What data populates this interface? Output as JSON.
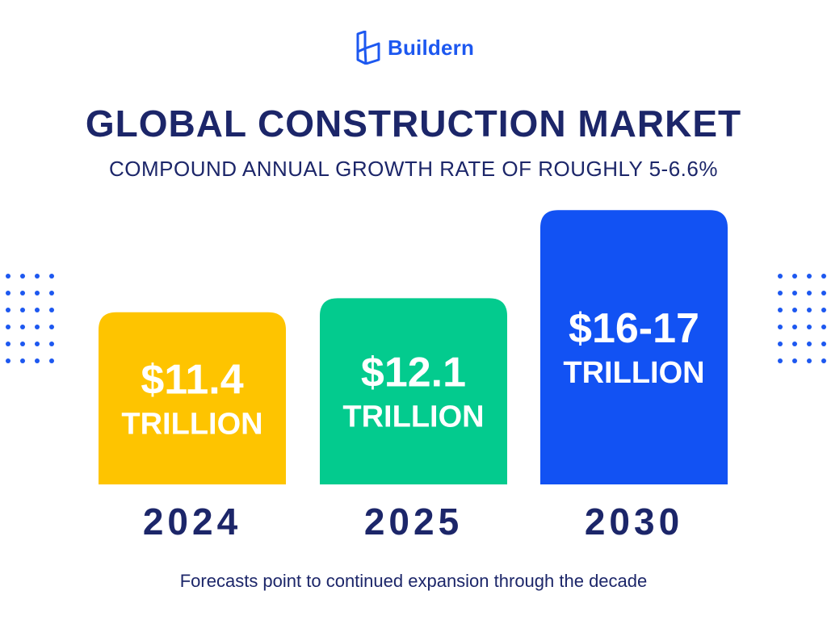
{
  "brand": {
    "name": "Buildern",
    "color": "#1d58f0"
  },
  "title": "GLOBAL CONSTRUCTION MARKET",
  "subtitle": "COMPOUND ANNUAL GROWTH RATE OF ROUGHLY 5-6.6%",
  "footer": "Forecasts point to continued expansion through the decade",
  "chart_data": {
    "type": "bar",
    "title": "GLOBAL CONSTRUCTION MARKET",
    "subtitle": "COMPOUND ANNUAL GROWTH RATE OF ROUGHLY 5-6.6%",
    "categories": [
      "2024",
      "2025",
      "2030"
    ],
    "values": [
      11.4,
      12.1,
      16.5
    ],
    "value_labels": [
      "$11.4",
      "$12.1",
      "$16-17"
    ],
    "unit_label": "TRILLION",
    "colors": [
      "#fec400",
      "#03cb8e",
      "#1252f3"
    ],
    "grid": false,
    "legend": "none"
  },
  "decoration": {
    "dot_color": "#1d58f0",
    "text_color": "#1c2669"
  }
}
